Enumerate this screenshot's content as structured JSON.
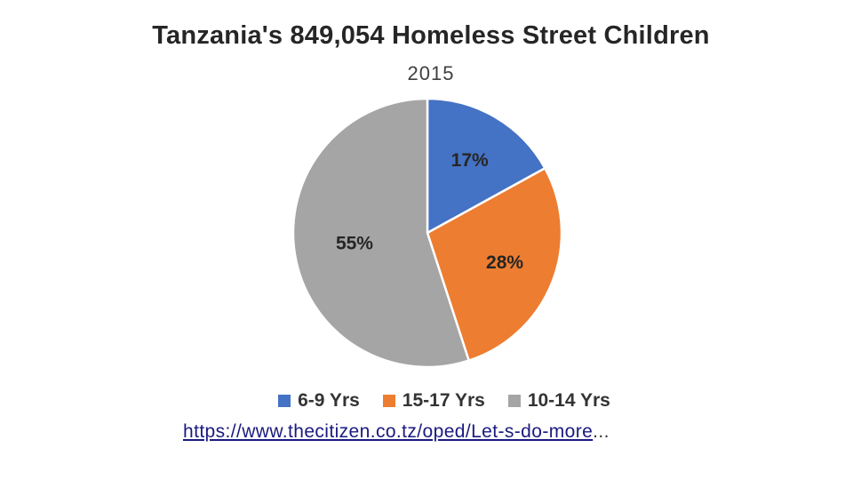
{
  "chart_data": {
    "type": "pie",
    "title": "Tanzania's 849,054  Homeless Street Children",
    "subtitle": "2015",
    "slices": [
      {
        "label": "6-9 Yrs",
        "value": 17,
        "display": "17%",
        "color": "#4472C4"
      },
      {
        "label": "15-17 Yrs",
        "value": 28,
        "display": "28%",
        "color": "#ED7D31"
      },
      {
        "label": "10-14 Yrs",
        "value": 55,
        "display": "55%",
        "color": "#A5A5A5"
      }
    ],
    "legend_position": "bottom"
  },
  "source": {
    "link_text": "https://www.thecitizen.co.tz/oped/Let-s-do-more",
    "ellipsis": "..."
  }
}
